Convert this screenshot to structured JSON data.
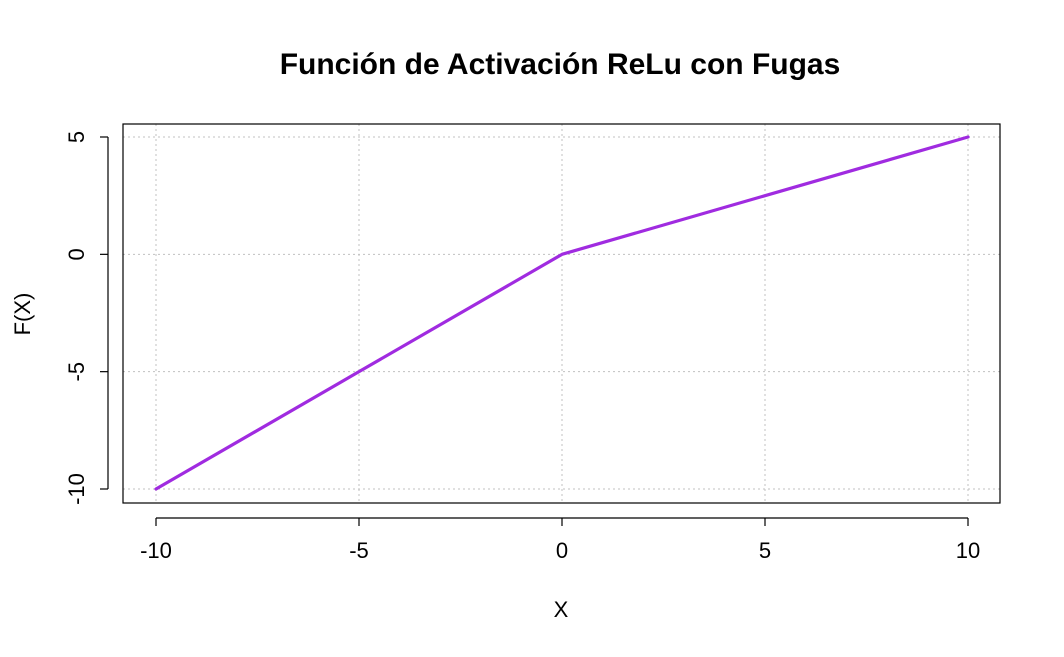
{
  "chart_data": {
    "type": "line",
    "title": "Función de Activación ReLu con Fugas",
    "xlabel": "X",
    "ylabel": "F(X)",
    "xlim": [
      -10,
      10
    ],
    "ylim": [
      -10,
      5
    ],
    "x_ticks": [
      -10,
      -5,
      0,
      5,
      10
    ],
    "y_ticks": [
      -10,
      -5,
      0,
      5
    ],
    "x_tick_labels": [
      "-10",
      "-5",
      "0",
      "5",
      "10"
    ],
    "y_tick_labels": [
      "-10",
      "-5",
      "0",
      "5"
    ],
    "grid": true,
    "series": [
      {
        "color": "#a02be0",
        "x": [
          -10,
          -5,
          0,
          5,
          10
        ],
        "y": [
          -10,
          -5,
          0,
          2.5,
          5
        ]
      }
    ]
  }
}
